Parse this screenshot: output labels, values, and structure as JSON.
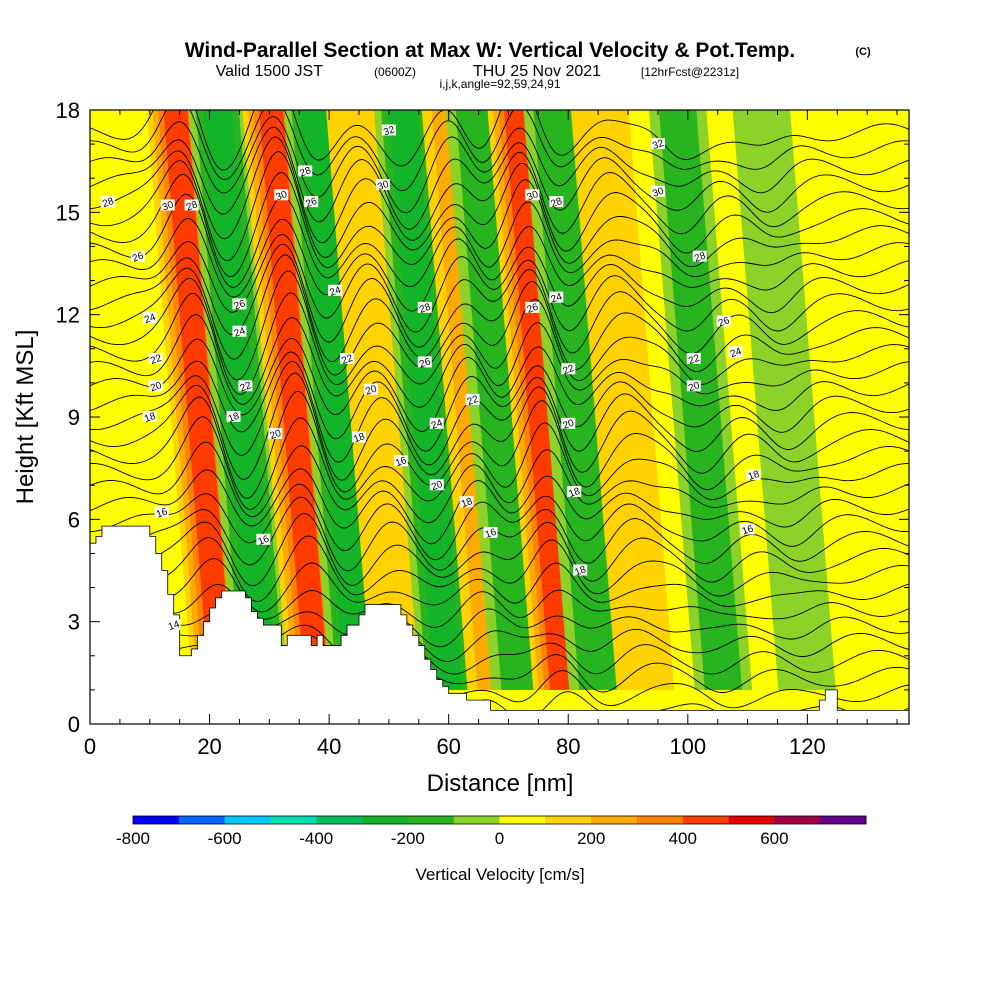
{
  "title": {
    "main": "Wind-Parallel Section at Max W: Vertical Velocity & Pot.Temp.",
    "copyright": "(C)",
    "valid_prefix": "Valid 1500 JST",
    "valid_utc": "(0600Z)",
    "valid_date": "THU 25 Nov 2021",
    "forecast": "[12hrFcst@2231z]",
    "indices": "i,j,k,angle=92,59,24,91"
  },
  "chart_data": {
    "type": "heatmap",
    "title": "Wind-Parallel Section at Max W: Vertical Velocity & Pot.Temp.",
    "xlabel": "Distance [nm]",
    "ylabel": "Height [Kft MSL]",
    "xlim": [
      0,
      137
    ],
    "ylim": [
      0,
      18
    ],
    "x_ticks": [
      "0",
      "20",
      "40",
      "60",
      "80",
      "100",
      "120"
    ],
    "x_tick_values": [
      0,
      20,
      40,
      60,
      80,
      100,
      120
    ],
    "y_ticks": [
      "0",
      "3",
      "6",
      "9",
      "12",
      "15",
      "18"
    ],
    "y_tick_values": [
      0,
      3,
      6,
      9,
      12,
      15,
      18
    ],
    "colorbar": {
      "title": "Vertical Velocity [cm/s]",
      "tick_labels": [
        "-800",
        "-600",
        "-400",
        "-200",
        "0",
        "200",
        "400",
        "600"
      ],
      "tick_values": [
        -800,
        -600,
        -400,
        -200,
        0,
        200,
        400,
        600
      ],
      "levels": [
        -800,
        -700,
        -600,
        -500,
        -400,
        -300,
        -200,
        -100,
        0,
        100,
        200,
        300,
        400,
        500,
        600,
        700
      ],
      "colors": [
        "#0000ff",
        "#0064ff",
        "#00c8ff",
        "#00e0b4",
        "#00c060",
        "#14b428",
        "#28b41e",
        "#8cd228",
        "#ffff00",
        "#ffd200",
        "#ffaa00",
        "#ff8200",
        "#ff3c00",
        "#e60000",
        "#a00046",
        "#64008c"
      ]
    },
    "velocity_bands": [
      {
        "sign": "up",
        "x_center": 17,
        "peak_cm_s": 400
      },
      {
        "sign": "down",
        "x_center": 24,
        "peak_cm_s": -300
      },
      {
        "sign": "up",
        "x_center": 33,
        "peak_cm_s": 450
      },
      {
        "sign": "down",
        "x_center": 40,
        "peak_cm_s": -300
      },
      {
        "sign": "up",
        "x_center": 47,
        "peak_cm_s": 150
      },
      {
        "sign": "down",
        "x_center": 55,
        "peak_cm_s": -300
      },
      {
        "sign": "up",
        "x_center": 63,
        "peak_cm_s": 250
      },
      {
        "sign": "down",
        "x_center": 67,
        "peak_cm_s": -200
      },
      {
        "sign": "up",
        "x_center": 74,
        "peak_cm_s": 400
      },
      {
        "sign": "down",
        "x_center": 80,
        "peak_cm_s": -250
      },
      {
        "sign": "up",
        "x_center": 88,
        "peak_cm_s": 150
      },
      {
        "sign": "down",
        "x_center": 101,
        "peak_cm_s": -200
      },
      {
        "sign": "down",
        "x_center": 115,
        "peak_cm_s": -150
      }
    ],
    "theta_contours": [
      14,
      16,
      18,
      20,
      22,
      24,
      26,
      28,
      30,
      32
    ],
    "theta_labels": [
      {
        "text": "14",
        "x": 14,
        "y": 2.9
      },
      {
        "text": "16",
        "x": 12,
        "y": 6.2
      },
      {
        "text": "16",
        "x": 29,
        "y": 5.4
      },
      {
        "text": "16",
        "x": 52,
        "y": 7.7
      },
      {
        "text": "16",
        "x": 67,
        "y": 5.6
      },
      {
        "text": "16",
        "x": 110,
        "y": 5.7
      },
      {
        "text": "18",
        "x": 10,
        "y": 9.0
      },
      {
        "text": "18",
        "x": 24,
        "y": 9.0
      },
      {
        "text": "18",
        "x": 45,
        "y": 8.4
      },
      {
        "text": "18",
        "x": 63,
        "y": 6.5
      },
      {
        "text": "18",
        "x": 82,
        "y": 4.5
      },
      {
        "text": "18",
        "x": 81,
        "y": 6.8
      },
      {
        "text": "18",
        "x": 111,
        "y": 7.3
      },
      {
        "text": "20",
        "x": 11,
        "y": 9.9
      },
      {
        "text": "20",
        "x": 31,
        "y": 8.5
      },
      {
        "text": "20",
        "x": 47,
        "y": 9.8
      },
      {
        "text": "20",
        "x": 58,
        "y": 7.0
      },
      {
        "text": "20",
        "x": 80,
        "y": 8.8
      },
      {
        "text": "20",
        "x": 101,
        "y": 9.9
      },
      {
        "text": "22",
        "x": 11,
        "y": 10.7
      },
      {
        "text": "22",
        "x": 26,
        "y": 9.9
      },
      {
        "text": "22",
        "x": 43,
        "y": 10.7
      },
      {
        "text": "22",
        "x": 64,
        "y": 9.5
      },
      {
        "text": "22",
        "x": 80,
        "y": 10.4
      },
      {
        "text": "22",
        "x": 101,
        "y": 10.7
      },
      {
        "text": "24",
        "x": 10,
        "y": 11.9
      },
      {
        "text": "24",
        "x": 25,
        "y": 11.5
      },
      {
        "text": "24",
        "x": 41,
        "y": 12.7
      },
      {
        "text": "24",
        "x": 58,
        "y": 8.8
      },
      {
        "text": "24",
        "x": 78,
        "y": 12.5
      },
      {
        "text": "24",
        "x": 108,
        "y": 10.9
      },
      {
        "text": "26",
        "x": 8,
        "y": 13.7
      },
      {
        "text": "26",
        "x": 25,
        "y": 12.3
      },
      {
        "text": "26",
        "x": 37,
        "y": 15.3
      },
      {
        "text": "26",
        "x": 56,
        "y": 10.6
      },
      {
        "text": "26",
        "x": 74,
        "y": 12.2
      },
      {
        "text": "26",
        "x": 106,
        "y": 11.8
      },
      {
        "text": "28",
        "x": 3,
        "y": 15.3
      },
      {
        "text": "28",
        "x": 17,
        "y": 15.2
      },
      {
        "text": "28",
        "x": 36,
        "y": 16.2
      },
      {
        "text": "28",
        "x": 56,
        "y": 12.2
      },
      {
        "text": "28",
        "x": 78,
        "y": 15.3
      },
      {
        "text": "28",
        "x": 102,
        "y": 13.7
      },
      {
        "text": "30",
        "x": 13,
        "y": 15.2
      },
      {
        "text": "30",
        "x": 32,
        "y": 15.5
      },
      {
        "text": "30",
        "x": 49,
        "y": 15.8
      },
      {
        "text": "30",
        "x": 74,
        "y": 15.5
      },
      {
        "text": "30",
        "x": 95,
        "y": 15.6
      },
      {
        "text": "32",
        "x": 50,
        "y": 17.4
      },
      {
        "text": "32",
        "x": 95,
        "y": 17.0
      }
    ],
    "terrain_profile": {
      "x": [
        0,
        1,
        1,
        2,
        2,
        5,
        5,
        10,
        10,
        11,
        11,
        12,
        12,
        13,
        13,
        14,
        14,
        15,
        15,
        17,
        17,
        18,
        18,
        19,
        19,
        20,
        20,
        21,
        21,
        22,
        22,
        23,
        23,
        26,
        26,
        27,
        27,
        28,
        28,
        29,
        29,
        32,
        32,
        33,
        33,
        34,
        34,
        37,
        37,
        38,
        38,
        39,
        39,
        42,
        42,
        43,
        43,
        45,
        45,
        46,
        46,
        47,
        47,
        48,
        48,
        52,
        52,
        53,
        53,
        54,
        54,
        55,
        55,
        56,
        56,
        57,
        57,
        58,
        58,
        59,
        59,
        60,
        60,
        63,
        63,
        67,
        67,
        70,
        70,
        122,
        122,
        123,
        123,
        125,
        125,
        137
      ],
      "y": [
        5.3,
        5.3,
        5.5,
        5.5,
        5.8,
        5.8,
        5.8,
        5.8,
        5.5,
        5.5,
        5.0,
        5.0,
        4.5,
        4.5,
        3.8,
        3.8,
        3.2,
        3.2,
        2.0,
        2.0,
        2.2,
        2.2,
        2.6,
        2.6,
        3.0,
        3.0,
        3.4,
        3.4,
        3.7,
        3.7,
        3.9,
        3.9,
        3.9,
        3.9,
        3.7,
        3.7,
        3.3,
        3.3,
        3.1,
        3.1,
        2.9,
        2.9,
        2.3,
        2.3,
        2.6,
        2.6,
        2.6,
        2.6,
        2.3,
        2.3,
        2.6,
        2.6,
        2.3,
        2.3,
        2.6,
        2.6,
        2.9,
        2.9,
        3.2,
        3.2,
        3.5,
        3.5,
        3.5,
        3.5,
        3.5,
        3.5,
        3.2,
        3.2,
        2.9,
        2.9,
        2.6,
        2.6,
        2.3,
        2.3,
        1.9,
        1.9,
        1.6,
        1.6,
        1.3,
        1.3,
        1.1,
        1.1,
        0.9,
        0.9,
        0.7,
        0.7,
        0.4,
        0.4,
        0.4,
        0.4,
        0.7,
        0.7,
        1.0,
        1.0,
        0.4,
        0.4
      ]
    }
  }
}
